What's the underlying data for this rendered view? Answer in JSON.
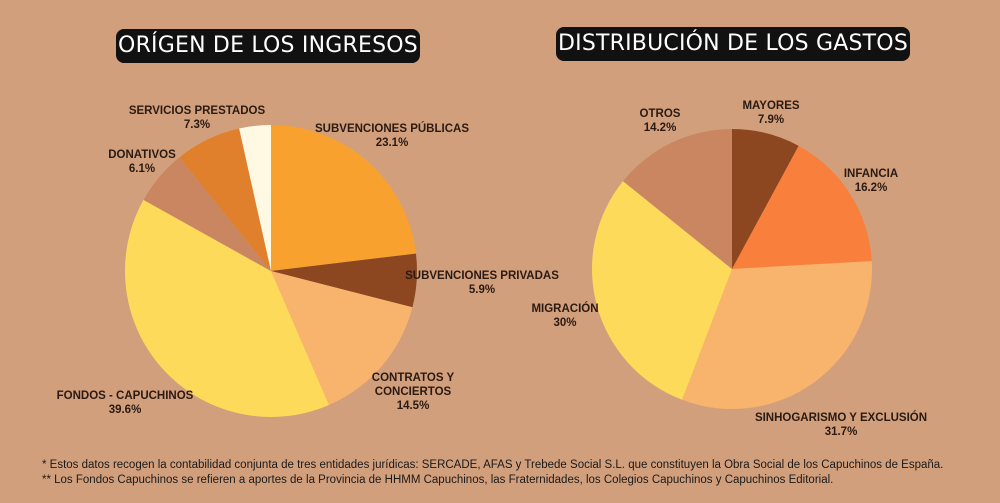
{
  "chart_data": [
    {
      "type": "pie",
      "title": "ORÍGEN DE LOS INGRESOS",
      "slices": [
        {
          "label": [
            "SUBVENCIONES PÚBLICAS"
          ],
          "value": 23.1,
          "value_label": "23.1%",
          "color": "#F8A12E"
        },
        {
          "label": [
            "SUBVENCIONES PRIVADAS"
          ],
          "value": 5.9,
          "value_label": "5.9%",
          "color": "#8C4620"
        },
        {
          "label": [
            "CONTRATOS Y",
            "CONCIERTOS"
          ],
          "value": 14.5,
          "value_label": "14.5%",
          "color": "#F8B46C"
        },
        {
          "label": [
            "FONDOS - CAPUCHINOS"
          ],
          "value": 39.6,
          "value_label": "39.6%",
          "color": "#FEDA5A"
        },
        {
          "label": [
            "DONATIVOS"
          ],
          "value": 6.1,
          "value_label": "6.1%",
          "color": "#C98660"
        },
        {
          "label": [
            "SERVICIOS PRESTADOS"
          ],
          "value": 7.3,
          "value_label": "7.3%",
          "color": "#E0802C"
        },
        {
          "label": [],
          "value": 3.5,
          "value_label": "",
          "color": "#FFF8E2"
        }
      ]
    },
    {
      "type": "pie",
      "title": "DISTRIBUCIÓN DE LOS GASTOS",
      "slices": [
        {
          "label": [
            "MAYORES"
          ],
          "value": 7.9,
          "value_label": "7.9%",
          "color": "#8C4620"
        },
        {
          "label": [
            "INFANCIA"
          ],
          "value": 16.2,
          "value_label": "16.2%",
          "color": "#F8803C"
        },
        {
          "label": [
            "SINHOGARISMO Y EXCLUSIÓN"
          ],
          "value": 31.7,
          "value_label": "31.7%",
          "color": "#F8B46C"
        },
        {
          "label": [
            "MIGRACIÓN"
          ],
          "value": 30,
          "value_label": "30%",
          "color": "#FEDA5A"
        },
        {
          "label": [
            "OTROS"
          ],
          "value": 14.2,
          "value_label": "14.2%",
          "color": "#C98660"
        }
      ]
    }
  ],
  "footnotes": {
    "note1": "* Estos datos recogen la contabilidad conjunta de tres entidades jurídicas: SERCADE, AFAS y Trebede Social S.L. que constituyen la Obra Social de los Capuchinos de España.",
    "note2": "** Los Fondos Capuchinos se refieren a aportes de la Provincia de HHMM Capuchinos, las Fraternidades, los Colegios Capuchinos y Capuchinos Editorial."
  }
}
